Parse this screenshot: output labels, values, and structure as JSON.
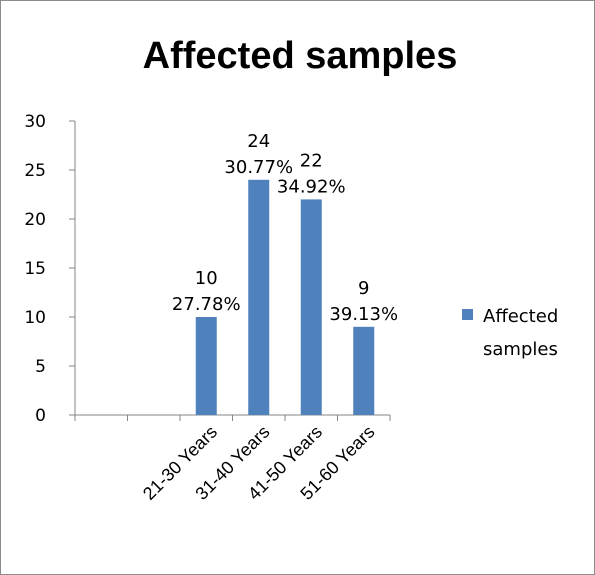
{
  "chart_data": {
    "type": "bar",
    "title": "Affected samples",
    "categories": [
      "",
      "",
      "21-30 Years",
      "31-40 Years",
      "41-50 Years",
      "51-60 Years"
    ],
    "series": [
      {
        "name": "Affected samples",
        "values": [
          null,
          null,
          10,
          24,
          22,
          9
        ],
        "labels": [
          null,
          null,
          [
            "10",
            "27.78%"
          ],
          [
            "24",
            "30.77%"
          ],
          [
            "22",
            "34.92%"
          ],
          [
            "9",
            "39.13%"
          ]
        ]
      }
    ],
    "y_ticks": [
      "0",
      "5",
      "10",
      "15",
      "20",
      "25",
      "30"
    ],
    "ylim": [
      0,
      30
    ],
    "grid": false,
    "legend_position": "right",
    "colors": {
      "bar": "#4f81bd",
      "axis": "#868686"
    }
  }
}
